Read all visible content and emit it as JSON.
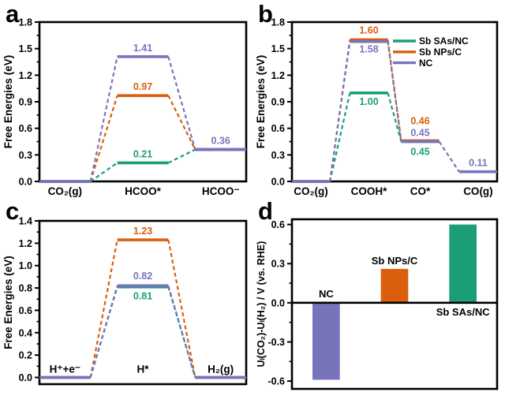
{
  "figure": {
    "background": "#ffffff"
  },
  "colors": {
    "teal": "#1B9E77",
    "orange": "#D95F0C",
    "purple": "#7774BB",
    "axis": "#000000",
    "text": "#000000"
  },
  "chart_data": [
    {
      "panel": "a",
      "type": "line",
      "subtype": "reaction-free-energy-steps",
      "title": "",
      "xlabel": "",
      "ylabel": "Free Energies (eV)",
      "ylim": [
        0,
        1.8
      ],
      "yticks": [
        0,
        0.3,
        0.6,
        0.9,
        1.2,
        1.5,
        1.8
      ],
      "ytick_labels": [
        "0.0",
        "0.3",
        "0.6",
        "0.9",
        "1.2",
        "1.5",
        "1.8"
      ],
      "categories": [
        "CO₂(g)",
        "HCOO*",
        "HCOO⁻"
      ],
      "cat_labels_inside": false,
      "series": [
        {
          "name": "Sb SAs/NC",
          "color": "teal",
          "values": [
            0.0,
            0.21,
            0.36
          ]
        },
        {
          "name": "Sb NPs/C",
          "color": "orange",
          "values": [
            0.0,
            0.97,
            0.36
          ]
        },
        {
          "name": "NC",
          "color": "purple",
          "values": [
            0.0,
            1.41,
            0.36
          ]
        }
      ],
      "point_labels": [
        {
          "text": "1.41",
          "color": "purple",
          "cat": 1,
          "dy": -7
        },
        {
          "text": "0.97",
          "color": "orange",
          "cat": 1,
          "dy": -7
        },
        {
          "text": "0.21",
          "color": "teal",
          "cat": 1,
          "dy": -7
        },
        {
          "text": "0.36",
          "color": "purple",
          "cat": 2,
          "dy": -7
        }
      ]
    },
    {
      "panel": "b",
      "type": "line",
      "subtype": "reaction-free-energy-steps",
      "title": "",
      "xlabel": "",
      "ylabel": "Free Energies (eV)",
      "ylim": [
        0,
        1.8
      ],
      "yticks": [
        0,
        0.3,
        0.6,
        0.9,
        1.2,
        1.5,
        1.8
      ],
      "ytick_labels": [
        "0.0",
        "0.3",
        "0.6",
        "0.9",
        "1.2",
        "1.5",
        "1.8"
      ],
      "categories": [
        "CO₂(g)",
        "COOH*",
        "CO*",
        "CO(g)"
      ],
      "cat_labels_inside": false,
      "series": [
        {
          "name": "Sb SAs/NC",
          "color": "teal",
          "values": [
            0.0,
            1.0,
            0.45,
            null
          ]
        },
        {
          "name": "Sb NPs/C",
          "color": "orange",
          "values": [
            0.0,
            1.6,
            0.46,
            null
          ]
        },
        {
          "name": "NC",
          "color": "purple",
          "values": [
            0.0,
            1.58,
            0.45,
            0.11
          ]
        }
      ],
      "point_labels": [
        {
          "text": "1.60",
          "color": "orange",
          "cat": 1,
          "dy": -8
        },
        {
          "text": "1.58",
          "color": "purple",
          "cat": 1,
          "dy": 14
        },
        {
          "text": "1.00",
          "color": "teal",
          "cat": 1,
          "dy": 15
        },
        {
          "text": "0.46",
          "color": "orange",
          "cat": 2,
          "dy": -21
        },
        {
          "text": "0.45",
          "color": "purple",
          "cat": 2,
          "dy": -7
        },
        {
          "text": "0.45",
          "color": "teal",
          "cat": 2,
          "dy": 17
        },
        {
          "text": "0.11",
          "color": "purple",
          "cat": 3,
          "dy": -7
        }
      ],
      "legend": {
        "position": "top-right",
        "entries": [
          {
            "label": "Sb SAs/NC",
            "color": "teal"
          },
          {
            "label": "Sb NPs/C",
            "color": "orange"
          },
          {
            "label": "NC",
            "color": "purple"
          }
        ]
      }
    },
    {
      "panel": "c",
      "type": "line",
      "subtype": "reaction-free-energy-steps",
      "title": "",
      "xlabel": "",
      "ylabel": "Free Energies (eV)",
      "ylim": [
        -0.06,
        1.4
      ],
      "yticks": [
        0,
        0.2,
        0.4,
        0.6,
        0.8,
        1.0,
        1.2,
        1.4
      ],
      "ytick_labels": [
        "0.0",
        "0.2",
        "0.4",
        "0.6",
        "0.8",
        "1.0",
        "1.2",
        "1.4"
      ],
      "categories": [
        "H⁺+e⁻",
        "H*",
        "H₂(g)"
      ],
      "cat_labels_inside": true,
      "series": [
        {
          "name": "Sb NPs/C",
          "color": "orange",
          "values": [
            0.0,
            1.23,
            0.0
          ]
        },
        {
          "name": "Sb SAs/NC",
          "color": "teal",
          "values": [
            0.0,
            0.81,
            0.0
          ]
        },
        {
          "name": "NC",
          "color": "purple",
          "values": [
            0.0,
            0.82,
            0.0
          ]
        }
      ],
      "point_labels": [
        {
          "text": "1.23",
          "color": "orange",
          "cat": 1,
          "dy": -7
        },
        {
          "text": "0.82",
          "color": "purple",
          "cat": 1,
          "dy": -8
        },
        {
          "text": "0.81",
          "color": "teal",
          "cat": 1,
          "dy": 16
        }
      ]
    },
    {
      "panel": "d",
      "type": "bar",
      "title": "",
      "xlabel": "",
      "ylabel": "Uₗ(CO₂)-Uₗ(H₂) / V (vs. RHE)",
      "ylim": [
        -0.66,
        0.64
      ],
      "yticks": [
        -0.6,
        -0.3,
        0,
        0.3,
        0.6
      ],
      "ytick_labels": [
        "-0.6",
        "-0.3",
        "0.0",
        "0.3",
        "0.6"
      ],
      "categories": [
        "NC",
        "Sb NPs/C",
        "Sb SAs/NC"
      ],
      "values": [
        -0.59,
        0.26,
        0.6
      ],
      "bar_colors": [
        "purple",
        "orange",
        "teal"
      ],
      "bar_labels": [
        {
          "text": "NC",
          "cat": 0,
          "pos": "zero-above"
        },
        {
          "text": "Sb NPs/C",
          "cat": 1,
          "pos": "bar-above"
        },
        {
          "text": "Sb SAs/NC",
          "cat": 2,
          "pos": "zero-below"
        }
      ]
    }
  ]
}
